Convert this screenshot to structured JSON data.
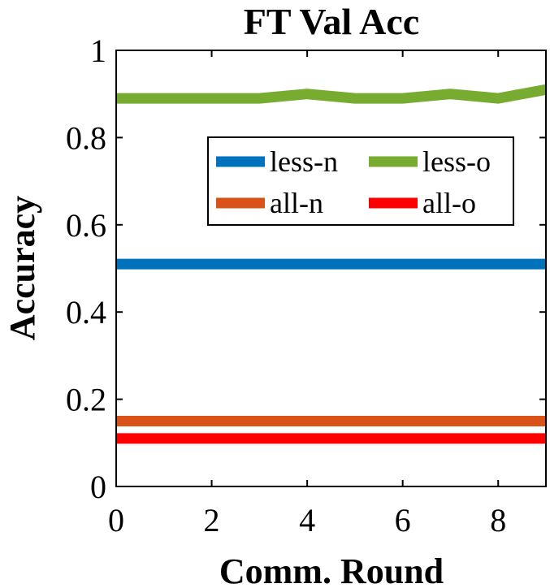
{
  "chart_data": {
    "type": "line",
    "title": "FT Val Acc",
    "xlabel": "Comm. Round",
    "ylabel": "Accuracy",
    "x": [
      0,
      1,
      2,
      3,
      4,
      5,
      6,
      7,
      8,
      9
    ],
    "xlim": [
      0,
      9
    ],
    "ylim": [
      0,
      1
    ],
    "xticks": [
      0,
      2,
      4,
      6,
      8
    ],
    "yticks": [
      0,
      0.2,
      0.4,
      0.6,
      0.8,
      1
    ],
    "ytick_labels": [
      "0",
      "0.2",
      "0.4",
      "0.6",
      "0.8",
      "1"
    ],
    "grid": false,
    "legend_position": "top-right",
    "series": [
      {
        "name": "less-n",
        "color": "#0072BD",
        "values": [
          0.51,
          0.51,
          0.51,
          0.51,
          0.51,
          0.51,
          0.51,
          0.51,
          0.51,
          0.51
        ]
      },
      {
        "name": "less-o",
        "color": "#77AC30",
        "values": [
          0.89,
          0.89,
          0.89,
          0.89,
          0.9,
          0.89,
          0.89,
          0.9,
          0.89,
          0.91
        ]
      },
      {
        "name": "all-n",
        "color": "#D95319",
        "values": [
          0.15,
          0.15,
          0.15,
          0.15,
          0.15,
          0.15,
          0.15,
          0.15,
          0.15,
          0.15
        ]
      },
      {
        "name": "all-o",
        "color": "#FF0000",
        "values": [
          0.11,
          0.11,
          0.11,
          0.11,
          0.11,
          0.11,
          0.11,
          0.11,
          0.11,
          0.11
        ]
      }
    ]
  }
}
